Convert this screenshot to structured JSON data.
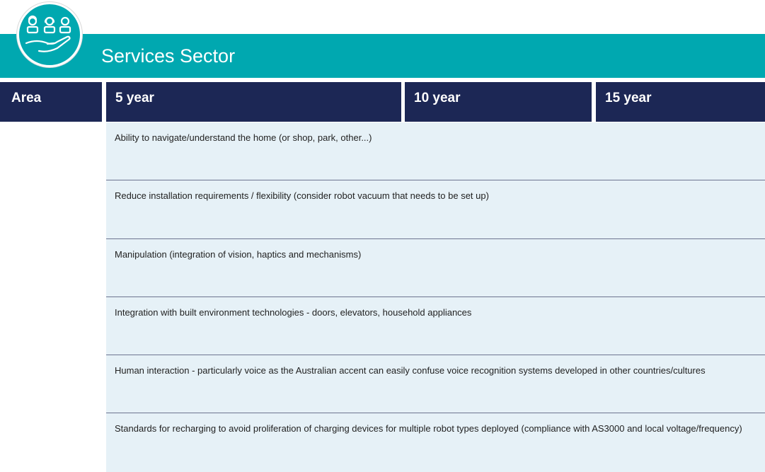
{
  "header": {
    "title": "Services Sector",
    "logo_icon": "services-hand-people-icon"
  },
  "columns": [
    "Area",
    "5 year",
    "10 year",
    "15 year"
  ],
  "rows": [
    "Ability to navigate/understand the home (or shop, park, other...)",
    "Reduce installation requirements / flexibility (consider robot vacuum that needs to be set up)",
    "Manipulation (integration of vision, haptics and mechanisms)",
    "Integration with built environment technologies - doors, elevators, household appliances",
    "Human interaction - particularly voice as the Australian accent can easily confuse voice recognition systems developed in other countries/cultures",
    "Standards for recharging to avoid proliferation of charging devices for multiple robot types deployed (compliance with AS3000 and local voltage/frequency)"
  ],
  "colors": {
    "teal": "#00a8b0",
    "navy": "#1c2755",
    "row_bg": "#e6f1f7"
  }
}
